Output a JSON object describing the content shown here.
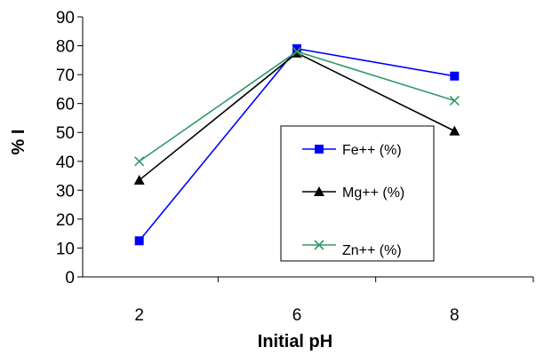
{
  "chart_data": {
    "type": "line",
    "title": "",
    "xlabel": "Initial pH",
    "ylabel": "% I",
    "categories": [
      "2",
      "6",
      "8"
    ],
    "ylim": [
      0,
      90
    ],
    "yticks": [
      0,
      10,
      20,
      30,
      40,
      50,
      60,
      70,
      80,
      90
    ],
    "grid": false,
    "legend_position": "inside-right",
    "series": [
      {
        "name": "Fe++ (%)",
        "values": [
          12.5,
          79,
          69.5
        ],
        "color": "#0000ff",
        "marker": "square"
      },
      {
        "name": "Mg++ (%)",
        "values": [
          33.5,
          77.5,
          50.5
        ],
        "color": "#000000",
        "marker": "triangle"
      },
      {
        "name": "Zn++ (%)",
        "values": [
          40,
          78,
          61
        ],
        "color": "#339966",
        "marker": "x"
      }
    ]
  }
}
